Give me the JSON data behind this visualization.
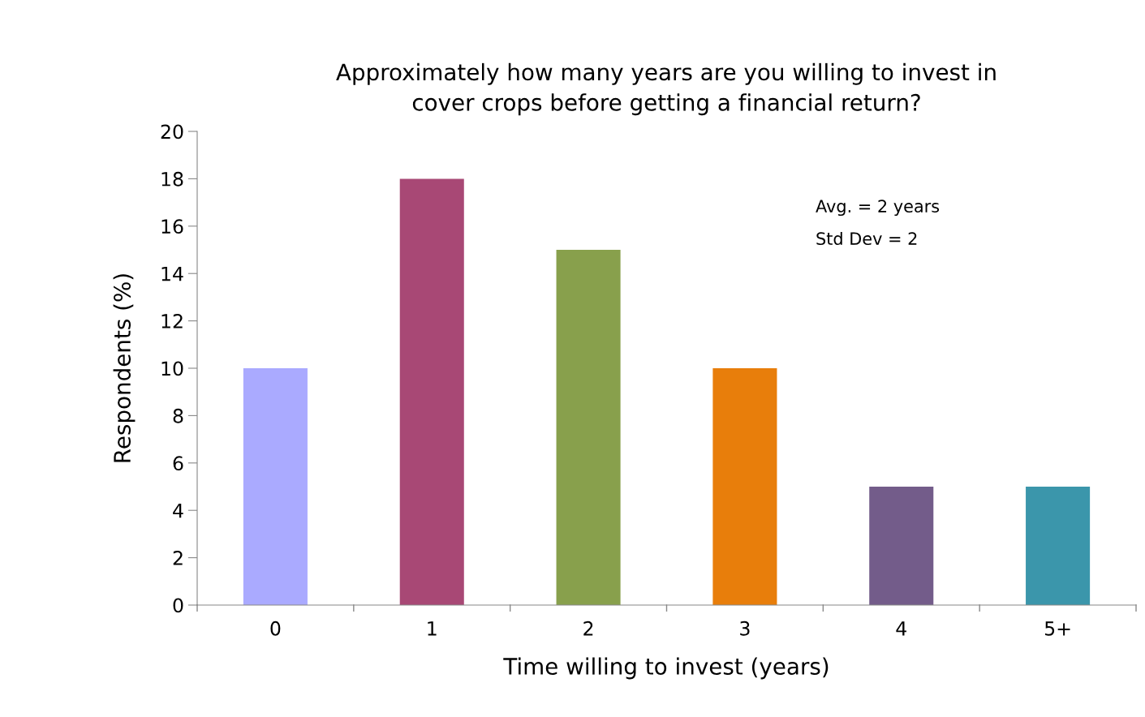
{
  "chart_data": {
    "type": "bar",
    "title": "Approximately how many years are you willing to invest in\ncover crops before getting a financial return?",
    "xlabel": "Time willing to invest (years)",
    "ylabel": "Respondents (%)",
    "categories": [
      "0",
      "1",
      "2",
      "3",
      "4",
      "5+"
    ],
    "values": [
      10,
      18,
      15,
      10,
      5,
      5
    ],
    "colors": [
      "#aaaaff",
      "#a84875",
      "#88a04c",
      "#e87e0b",
      "#735c8a",
      "#3b96ab"
    ],
    "ylim": [
      0,
      20
    ],
    "yticks": [
      0,
      2,
      4,
      6,
      8,
      10,
      12,
      14,
      16,
      18,
      20
    ],
    "grid": false,
    "legend": false,
    "annotations": [
      "Avg. = 2 years",
      "Std Dev = 2"
    ]
  }
}
